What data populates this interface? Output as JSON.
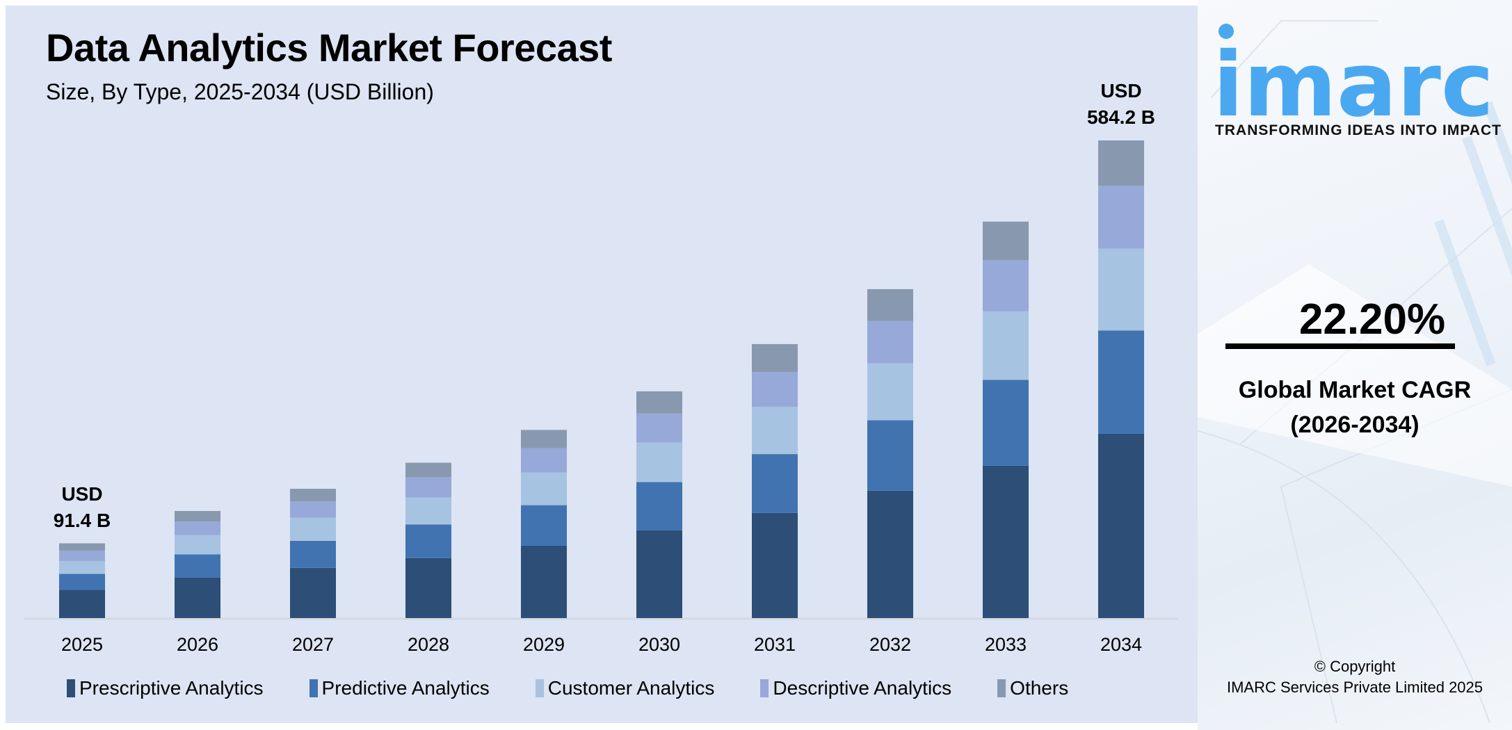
{
  "header": {
    "title": "Data Analytics Market Forecast",
    "subtitle": "Size, By Type, 2025-2034 (USD Billion)"
  },
  "chart_data": {
    "type": "bar",
    "stacked": true,
    "title": "Data Analytics Market Forecast",
    "subtitle": "Size, By Type, 2025-2034 (USD Billion)",
    "categories": [
      "2025",
      "2026",
      "2027",
      "2028",
      "2029",
      "2030",
      "2031",
      "2032",
      "2033",
      "2034"
    ],
    "series": [
      {
        "name": "Prescriptive Analytics",
        "color": "#2c4e77",
        "values": [
          34.4,
          49.6,
          61.4,
          73.2,
          88.5,
          107.4,
          128.6,
          155.8,
          186.4,
          225.4
        ]
      },
      {
        "name": "Predictive Analytics",
        "color": "#4173b0",
        "values": [
          19.7,
          28.3,
          33.0,
          41.3,
          49.6,
          59.0,
          72.0,
          86.1,
          105.0,
          126.3
        ]
      },
      {
        "name": "Customer Analytics",
        "color": "#a7c3e2",
        "values": [
          15.7,
          23.6,
          28.3,
          33.0,
          40.1,
          48.4,
          57.8,
          69.6,
          83.8,
          100.3
        ]
      },
      {
        "name": "Descriptive Analytics",
        "color": "#96a9d8",
        "values": [
          12.8,
          16.5,
          20.1,
          24.8,
          29.5,
          35.4,
          42.5,
          51.9,
          62.5,
          76.7
        ]
      },
      {
        "name": "Others",
        "color": "#8898ae",
        "values": [
          8.8,
          13.0,
          15.3,
          17.7,
          22.4,
          27.1,
          34.2,
          38.9,
          47.2,
          55.5
        ]
      }
    ],
    "annotations": [
      {
        "category": "2025",
        "line1": "USD",
        "line2": "91.4 B"
      },
      {
        "category": "2034",
        "line1": "USD",
        "line2": "584.2 B"
      }
    ],
    "ylim": [
      0,
      650
    ],
    "grid": false,
    "legend": "bottom",
    "xlabel": "",
    "ylabel": ""
  },
  "side": {
    "logo_text": "imarc",
    "tagline": "TRANSFORMING IDEAS INTO IMPACT",
    "cagr_value": "22.20%",
    "cagr_label": "Global Market CAGR",
    "cagr_period": "(2026-2034)",
    "copyright_line1": "© Copyright",
    "copyright_line2": "IMARC Services Private Limited 2025",
    "brand_color": "#4aa8f0"
  }
}
